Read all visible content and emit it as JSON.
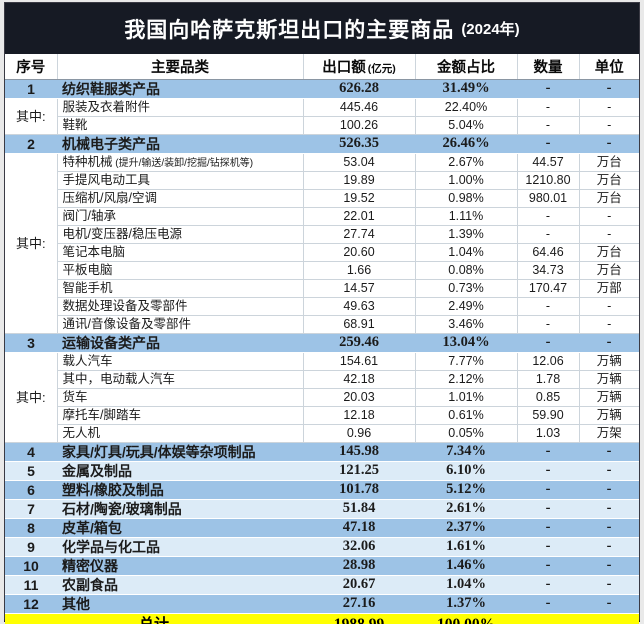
{
  "title": {
    "main": "我国向哈萨克斯坦出口的主要商品",
    "year": "(2024年)"
  },
  "chart_data": {
    "type": "table",
    "title": "我国向哈萨克斯坦出口的主要商品 (2024年)",
    "columns": [
      {
        "label": "序号"
      },
      {
        "label": "主要品类"
      },
      {
        "label": "出口额",
        "note": "(亿元)"
      },
      {
        "label": "金额占比"
      },
      {
        "label": "数量"
      },
      {
        "label": "单位"
      }
    ],
    "rows": [
      {
        "type": "category",
        "bg": "blue",
        "seq": "1",
        "label": "纺织鞋服类产品",
        "export": "626.28",
        "share": "31.49%",
        "qty": "-",
        "unit": "-"
      },
      {
        "type": "sub",
        "group": {
          "label": "其中:",
          "span": 2
        },
        "label": "服装及衣着附件",
        "export": "445.46",
        "share": "22.40%",
        "qty": "-",
        "unit": "-"
      },
      {
        "type": "sub",
        "label": "鞋靴",
        "export": "100.26",
        "share": "5.04%",
        "qty": "-",
        "unit": "-"
      },
      {
        "type": "category",
        "bg": "blue",
        "seq": "2",
        "label": "机械电子类产品",
        "export": "526.35",
        "share": "26.46%",
        "qty": "-",
        "unit": "-"
      },
      {
        "type": "sub",
        "group": {
          "label": "其中:",
          "span": 10
        },
        "label": "特种机械",
        "note": "(提升/输送/装卸/挖掘/钻探机等)",
        "export": "53.04",
        "share": "2.67%",
        "qty": "44.57",
        "unit": "万台"
      },
      {
        "type": "sub",
        "label": "手提风电动工具",
        "export": "19.89",
        "share": "1.00%",
        "qty": "1210.80",
        "unit": "万台"
      },
      {
        "type": "sub",
        "label": "压缩机/风扇/空调",
        "export": "19.52",
        "share": "0.98%",
        "qty": "980.01",
        "unit": "万台"
      },
      {
        "type": "sub",
        "label": "阀门/轴承",
        "export": "22.01",
        "share": "1.11%",
        "qty": "-",
        "unit": "-"
      },
      {
        "type": "sub",
        "label": "电机/变压器/稳压电源",
        "export": "27.74",
        "share": "1.39%",
        "qty": "-",
        "unit": "-"
      },
      {
        "type": "sub",
        "label": "笔记本电脑",
        "export": "20.60",
        "share": "1.04%",
        "qty": "64.46",
        "unit": "万台"
      },
      {
        "type": "sub",
        "label": "平板电脑",
        "export": "1.66",
        "share": "0.08%",
        "qty": "34.73",
        "unit": "万台"
      },
      {
        "type": "sub",
        "label": "智能手机",
        "export": "14.57",
        "share": "0.73%",
        "qty": "170.47",
        "unit": "万部"
      },
      {
        "type": "sub",
        "label": "数据处理设备及零部件",
        "export": "49.63",
        "share": "2.49%",
        "qty": "-",
        "unit": "-"
      },
      {
        "type": "sub",
        "label": "通讯/音像设备及零部件",
        "export": "68.91",
        "share": "3.46%",
        "qty": "-",
        "unit": "-"
      },
      {
        "type": "category",
        "bg": "blue",
        "seq": "3",
        "label": "运输设备类产品",
        "export": "259.46",
        "share": "13.04%",
        "qty": "-",
        "unit": "-"
      },
      {
        "type": "sub",
        "group": {
          "label": "其中:",
          "span": 5
        },
        "label": "载人汽车",
        "export": "154.61",
        "share": "7.77%",
        "qty": "12.06",
        "unit": "万辆"
      },
      {
        "type": "sub",
        "label": "其中，电动载人汽车",
        "export": "42.18",
        "share": "2.12%",
        "qty": "1.78",
        "unit": "万辆"
      },
      {
        "type": "sub",
        "label": "货车",
        "export": "20.03",
        "share": "1.01%",
        "qty": "0.85",
        "unit": "万辆"
      },
      {
        "type": "sub",
        "label": "摩托车/脚踏车",
        "export": "12.18",
        "share": "0.61%",
        "qty": "59.90",
        "unit": "万辆"
      },
      {
        "type": "sub",
        "label": "无人机",
        "export": "0.96",
        "share": "0.05%",
        "qty": "1.03",
        "unit": "万架"
      },
      {
        "type": "category",
        "bg": "blue",
        "seq": "4",
        "label": "家具/灯具/玩具/体娱等杂项制品",
        "export": "145.98",
        "share": "7.34%",
        "qty": "-",
        "unit": "-"
      },
      {
        "type": "category",
        "bg": "pale",
        "seq": "5",
        "label": "金属及制品",
        "export": "121.25",
        "share": "6.10%",
        "qty": "-",
        "unit": "-"
      },
      {
        "type": "category",
        "bg": "blue",
        "seq": "6",
        "label": "塑料/橡胶及制品",
        "export": "101.78",
        "share": "5.12%",
        "qty": "-",
        "unit": "-"
      },
      {
        "type": "category",
        "bg": "pale",
        "seq": "7",
        "label": "石材/陶瓷/玻璃制品",
        "export": "51.84",
        "share": "2.61%",
        "qty": "-",
        "unit": "-"
      },
      {
        "type": "category",
        "bg": "blue",
        "seq": "8",
        "label": "皮革/箱包",
        "export": "47.18",
        "share": "2.37%",
        "qty": "-",
        "unit": "-"
      },
      {
        "type": "category",
        "bg": "pale",
        "seq": "9",
        "label": "化学品与化工品",
        "export": "32.06",
        "share": "1.61%",
        "qty": "-",
        "unit": "-"
      },
      {
        "type": "category",
        "bg": "blue",
        "seq": "10",
        "label": "精密仪器",
        "export": "28.98",
        "share": "1.46%",
        "qty": "-",
        "unit": "-"
      },
      {
        "type": "category",
        "bg": "pale",
        "seq": "11",
        "label": "农副食品",
        "export": "20.67",
        "share": "1.04%",
        "qty": "-",
        "unit": "-"
      },
      {
        "type": "category",
        "bg": "blue",
        "seq": "12",
        "label": "其他",
        "export": "27.16",
        "share": "1.37%",
        "qty": "-",
        "unit": "-"
      },
      {
        "type": "total",
        "label": "总计",
        "export": "1988.99",
        "share": "100.00%",
        "qty": "-",
        "unit": "-"
      }
    ]
  },
  "colors": {
    "banner_bg": "#161a24",
    "category_blue": "#9dc3e6",
    "category_pale": "#dcebf7",
    "total_yellow": "#ffff00"
  }
}
